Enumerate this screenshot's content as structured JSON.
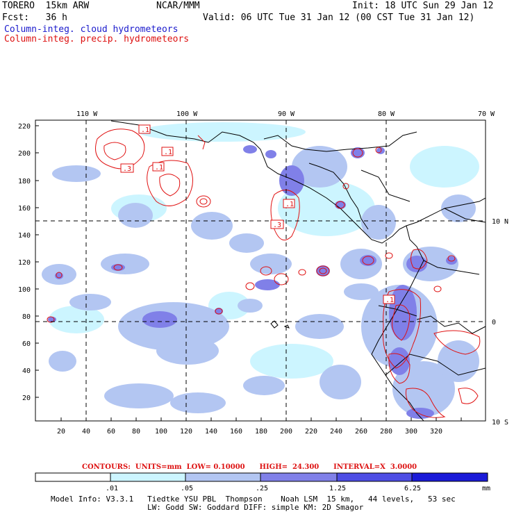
{
  "header": {
    "model": "TORERO  15km ARW",
    "org": "NCAR/MMM",
    "init": "Init: 18 UTC Sun 29 Jan 12",
    "fcst": "Fcst:   36 h",
    "valid": "Valid: 06 UTC Tue 31 Jan 12 (00 CST Tue 31 Jan 12)",
    "field1": "Column-integ. cloud hydrometeors",
    "field2": "Column-integ. precip. hydrometeors"
  },
  "axes": {
    "top_lon": [
      "110 W",
      "100 W",
      "90 W",
      "80 W",
      "70 W"
    ],
    "left_y": [
      "220",
      "200",
      "180",
      "160",
      "140",
      "120",
      "100",
      "80",
      "60",
      "40",
      "20"
    ],
    "bottom_x": [
      "20",
      "40",
      "60",
      "80",
      "100",
      "120",
      "140",
      "160",
      "180",
      "200",
      "220",
      "240",
      "260",
      "280",
      "300",
      "320"
    ],
    "right_lat": [
      "10 N",
      "0",
      "10 S"
    ]
  },
  "contour_labels": [
    ".1",
    ".1",
    ".3",
    ".1",
    ".1",
    ".3",
    ".1",
    ".1"
  ],
  "contours_text": "CONTOURS:  UNITS=mm  LOW= 0.10000      HIGH=  24.300      INTERVAL=X  3.0000",
  "legend": {
    "ticks": [
      ".01",
      ".05",
      ".25",
      "1.25",
      "6.25"
    ],
    "unit": "mm",
    "colors": [
      "#ffffff",
      "#ccf5ff",
      "#b3c6f2",
      "#9999ee",
      "#6666e6",
      "#3333e0",
      "#1a1ad8"
    ]
  },
  "model_info": {
    "line1": "Model Info: V3.3.1   Tiedtke YSU PBL  Thompson    Noah LSM  15 km,   44 levels,   53 sec",
    "line2": "LW: Godd SW: Goddard DIFF: simple KM: 2D Smagor"
  },
  "colors": {
    "cloud_text": "#1a1acc",
    "precip_text": "#dd1111",
    "contour": "#e01010"
  }
}
